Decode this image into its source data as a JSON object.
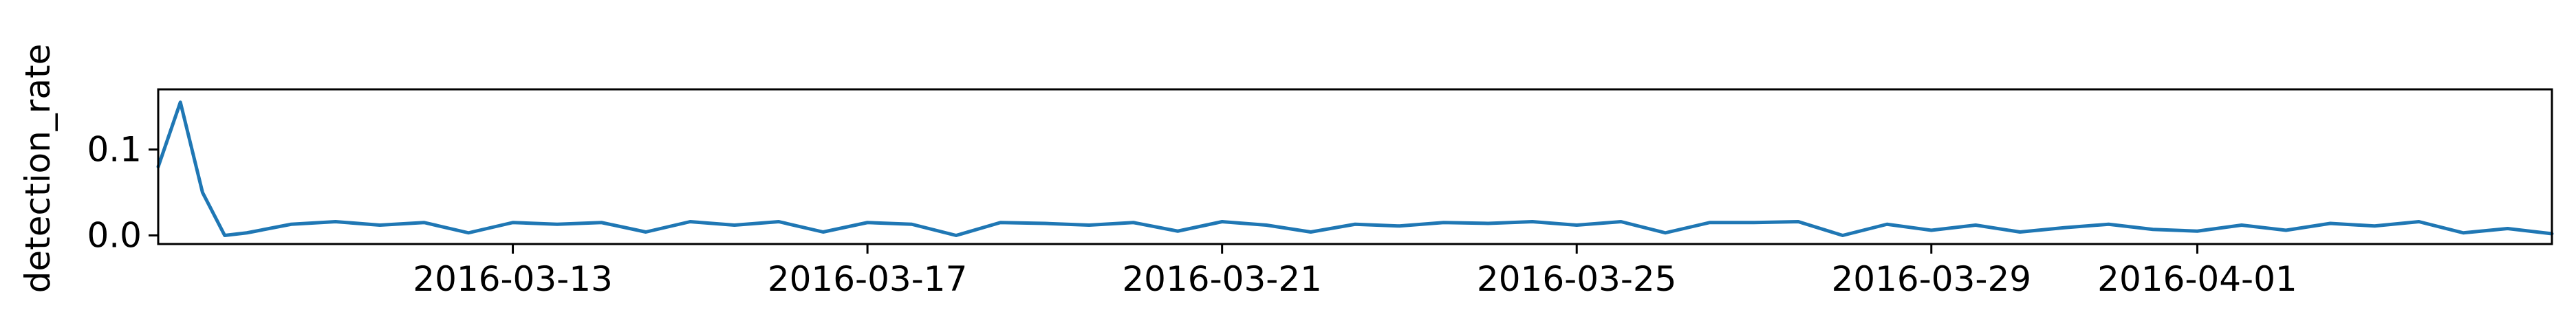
{
  "chart_data": {
    "type": "line",
    "title": "",
    "xlabel": "",
    "ylabel": "detection_rate",
    "x_start": "2016-03-09",
    "x_end": "2016-04-05",
    "xlim": [
      "2016-03-09",
      "2016-04-05"
    ],
    "ylim": [
      -0.01,
      0.17
    ],
    "grid": false,
    "legend": "none",
    "line_color": "#1f77b4",
    "x_ticks": [
      {
        "date": "2016-03-13",
        "label": "2016-03-13"
      },
      {
        "date": "2016-03-17",
        "label": "2016-03-17"
      },
      {
        "date": "2016-03-21",
        "label": "2016-03-21"
      },
      {
        "date": "2016-03-25",
        "label": "2016-03-25"
      },
      {
        "date": "2016-03-29",
        "label": "2016-03-29"
      },
      {
        "date": "2016-04-01",
        "label": "2016-04-01"
      }
    ],
    "y_ticks": [
      {
        "value": 0.0,
        "label": "0.0"
      },
      {
        "value": 0.1,
        "label": "0.1"
      }
    ],
    "series": [
      {
        "name": "",
        "x": [
          "2016-03-09",
          "2016-03-09 06:00",
          "2016-03-09 12:00",
          "2016-03-09 18:00",
          "2016-03-10",
          "2016-03-10 12:00",
          "2016-03-11",
          "2016-03-11 12:00",
          "2016-03-12",
          "2016-03-12 12:00",
          "2016-03-13",
          "2016-03-13 12:00",
          "2016-03-14",
          "2016-03-14 12:00",
          "2016-03-15",
          "2016-03-15 12:00",
          "2016-03-16",
          "2016-03-16 12:00",
          "2016-03-17",
          "2016-03-17 12:00",
          "2016-03-18",
          "2016-03-18 12:00",
          "2016-03-19",
          "2016-03-19 12:00",
          "2016-03-20",
          "2016-03-20 12:00",
          "2016-03-21",
          "2016-03-21 12:00",
          "2016-03-22",
          "2016-03-22 12:00",
          "2016-03-23",
          "2016-03-23 12:00",
          "2016-03-24",
          "2016-03-24 12:00",
          "2016-03-25",
          "2016-03-25 12:00",
          "2016-03-26",
          "2016-03-26 12:00",
          "2016-03-27",
          "2016-03-27 12:00",
          "2016-03-28",
          "2016-03-28 12:00",
          "2016-03-29",
          "2016-03-29 12:00",
          "2016-03-30",
          "2016-03-30 12:00",
          "2016-03-31",
          "2016-03-31 12:00",
          "2016-04-01",
          "2016-04-01 12:00",
          "2016-04-02",
          "2016-04-02 12:00",
          "2016-04-03",
          "2016-04-03 12:00",
          "2016-04-04",
          "2016-04-04 12:00",
          "2016-04-05"
        ],
        "values": [
          0.08,
          0.155,
          0.05,
          0.0,
          0.003,
          0.013,
          0.016,
          0.012,
          0.015,
          0.003,
          0.015,
          0.013,
          0.015,
          0.004,
          0.016,
          0.012,
          0.016,
          0.004,
          0.015,
          0.013,
          0.0,
          0.015,
          0.014,
          0.012,
          0.015,
          0.005,
          0.016,
          0.012,
          0.004,
          0.013,
          0.011,
          0.015,
          0.014,
          0.016,
          0.012,
          0.016,
          0.003,
          0.015,
          0.015,
          0.016,
          0.0,
          0.013,
          0.006,
          0.012,
          0.004,
          0.009,
          0.013,
          0.007,
          0.005,
          0.012,
          0.006,
          0.014,
          0.011,
          0.016,
          0.003,
          0.008,
          0.002
        ]
      }
    ]
  }
}
